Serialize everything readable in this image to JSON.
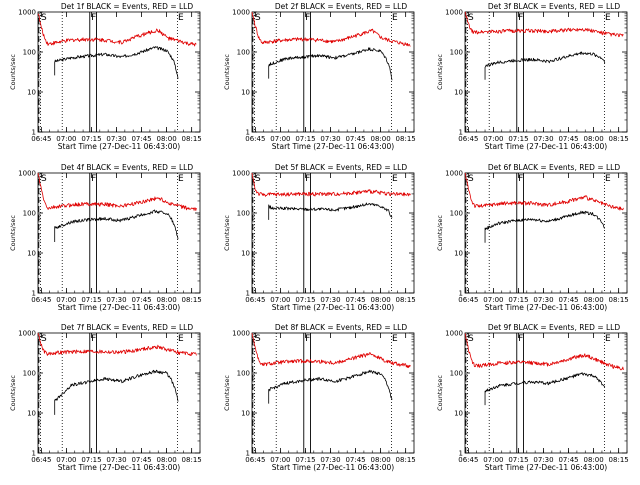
{
  "figure": {
    "colors": {
      "events": "#000000",
      "lld": "#e00000",
      "axis": "#000000",
      "markers": "#000000"
    }
  },
  "chart_data": [
    {
      "type": "line",
      "title": "Det 1f BLACK = Events, RED = LLD",
      "xlabel": "Start Time (27-Dec-11 06:43:00)",
      "ylabel": "Counts/sec",
      "yscale": "log",
      "ylim": [
        1,
        1000
      ],
      "xlim_min": [
        0,
        37
      ],
      "x_ticks_min": [
        2,
        17,
        32,
        47,
        62,
        77,
        92
      ],
      "x_tick_labels": [
        "06:45",
        "07:00",
        "07:15",
        "07:30",
        "07:45",
        "08:00",
        "08:15"
      ],
      "y_ticks": [
        1,
        10,
        100,
        1000
      ],
      "y_tick_labels": [
        "1",
        "10",
        "100",
        "1000"
      ],
      "marker_labels": [
        "S",
        "F",
        "E"
      ],
      "markers_x_min": [
        1.5,
        31.5,
        83.5
      ],
      "dotted_lines_x_min": [
        1.5,
        14.5,
        83.5
      ],
      "box_lines_x_min": [
        31.0,
        35.0
      ],
      "series": [
        {
          "name": "Events",
          "color": "#000000",
          "x_min": [
            10,
            20,
            30,
            40,
            50,
            60,
            70,
            77,
            80,
            82,
            84
          ],
          "values": [
            58,
            72,
            80,
            88,
            75,
            95,
            130,
            110,
            75,
            50,
            20
          ]
        },
        {
          "name": "LLD",
          "color": "#e00000",
          "x_min": [
            0,
            2,
            4,
            6,
            10,
            20,
            30,
            40,
            50,
            60,
            66,
            72,
            78,
            84,
            90,
            95
          ],
          "values": [
            1000,
            400,
            220,
            160,
            170,
            200,
            210,
            200,
            175,
            250,
            300,
            350,
            220,
            190,
            160,
            150
          ]
        }
      ]
    },
    {
      "type": "line",
      "title": "Det 2f BLACK = Events, RED = LLD",
      "xlabel": "Start Time (27-Dec-11 06:43:00)",
      "ylabel": "Counts/sec",
      "yscale": "log",
      "ylim": [
        1,
        1000
      ],
      "x_tick_labels": [
        "06:45",
        "07:00",
        "07:15",
        "07:30",
        "07:45",
        "08:00",
        "08:15"
      ],
      "y_tick_labels": [
        "1",
        "10",
        "100",
        "1000"
      ],
      "marker_labels": [
        "S",
        "F",
        "E"
      ],
      "series": [
        {
          "name": "Events",
          "color": "#000000",
          "x_min": [
            10,
            20,
            30,
            40,
            50,
            60,
            70,
            77,
            80,
            82,
            84
          ],
          "values": [
            48,
            68,
            75,
            82,
            72,
            88,
            120,
            105,
            72,
            48,
            20
          ]
        },
        {
          "name": "LLD",
          "color": "#e00000",
          "x_min": [
            0,
            2,
            4,
            6,
            10,
            20,
            30,
            40,
            50,
            60,
            66,
            72,
            78,
            84,
            90,
            95
          ],
          "values": [
            1000,
            450,
            230,
            170,
            180,
            200,
            210,
            200,
            180,
            240,
            290,
            340,
            220,
            185,
            165,
            150
          ]
        }
      ]
    },
    {
      "type": "line",
      "title": "Det 3f BLACK = Events, RED = LLD",
      "xlabel": "Start Time (27-Dec-11 06:43:00)",
      "ylabel": "Counts/sec",
      "yscale": "log",
      "ylim": [
        1,
        1000
      ],
      "x_tick_labels": [
        "06:45",
        "07:00",
        "07:15",
        "07:30",
        "07:45",
        "08:00",
        "08:15"
      ],
      "y_tick_labels": [
        "1",
        "10",
        "100",
        "1000"
      ],
      "marker_labels": [
        "S",
        "F",
        "E"
      ],
      "series": [
        {
          "name": "Events",
          "color": "#000000",
          "x_min": [
            12,
            20,
            30,
            40,
            50,
            60,
            70,
            77,
            82,
            84
          ],
          "values": [
            45,
            55,
            62,
            65,
            58,
            75,
            95,
            88,
            70,
            55
          ]
        },
        {
          "name": "LLD",
          "color": "#e00000",
          "x_min": [
            0,
            2,
            4,
            6,
            10,
            20,
            30,
            40,
            50,
            60,
            70,
            78,
            84,
            90,
            95
          ],
          "values": [
            1000,
            500,
            330,
            310,
            320,
            330,
            340,
            340,
            330,
            350,
            380,
            330,
            290,
            270,
            260
          ]
        }
      ]
    },
    {
      "type": "line",
      "title": "Det 4f BLACK = Events, RED = LLD",
      "xlabel": "Start Time (27-Dec-11 06:43:00)",
      "ylabel": "Counts/sec",
      "yscale": "log",
      "ylim": [
        1,
        1000
      ],
      "x_tick_labels": [
        "06:45",
        "07:00",
        "07:15",
        "07:30",
        "07:45",
        "08:00",
        "08:15"
      ],
      "y_tick_labels": [
        "1",
        "10",
        "100",
        "1000"
      ],
      "marker_labels": [
        "S",
        "F",
        "E"
      ],
      "series": [
        {
          "name": "Events",
          "color": "#000000",
          "x_min": [
            10,
            20,
            30,
            40,
            50,
            60,
            70,
            77,
            80,
            82,
            84
          ],
          "values": [
            42,
            60,
            68,
            72,
            65,
            85,
            110,
            100,
            70,
            45,
            22
          ]
        },
        {
          "name": "LLD",
          "color": "#e00000",
          "x_min": [
            0,
            2,
            4,
            6,
            10,
            20,
            30,
            40,
            50,
            60,
            66,
            72,
            78,
            84,
            90,
            95
          ],
          "values": [
            1000,
            380,
            180,
            130,
            140,
            160,
            170,
            165,
            150,
            180,
            210,
            240,
            180,
            150,
            130,
            120
          ]
        }
      ]
    },
    {
      "type": "line",
      "title": "Det 5f BLACK = Events, RED = LLD",
      "xlabel": "Start Time (27-Dec-11 06:43:00)",
      "ylabel": "Counts/sec",
      "yscale": "log",
      "ylim": [
        1,
        1000
      ],
      "x_tick_labels": [
        "06:45",
        "07:00",
        "07:15",
        "07:30",
        "07:45",
        "08:00",
        "08:15"
      ],
      "y_tick_labels": [
        "1",
        "10",
        "100",
        "1000"
      ],
      "marker_labels": [
        "S",
        "F",
        "E"
      ],
      "series": [
        {
          "name": "Events",
          "color": "#000000",
          "x_min": [
            10,
            12,
            20,
            30,
            40,
            50,
            60,
            70,
            77,
            82,
            84
          ],
          "values": [
            150,
            130,
            130,
            125,
            125,
            120,
            140,
            170,
            150,
            110,
            70
          ]
        },
        {
          "name": "LLD",
          "color": "#e00000",
          "x_min": [
            0,
            2,
            4,
            6,
            10,
            20,
            30,
            40,
            50,
            60,
            70,
            78,
            84,
            90,
            95
          ],
          "values": [
            1000,
            380,
            300,
            290,
            290,
            295,
            300,
            300,
            300,
            320,
            350,
            320,
            300,
            290,
            285
          ]
        }
      ]
    },
    {
      "type": "line",
      "title": "Det 6f BLACK = Events, RED = LLD",
      "xlabel": "Start Time (27-Dec-11 06:43:00)",
      "ylabel": "Counts/sec",
      "yscale": "log",
      "ylim": [
        1,
        1000
      ],
      "x_tick_labels": [
        "06:45",
        "07:00",
        "07:15",
        "07:30",
        "07:45",
        "08:00",
        "08:15"
      ],
      "y_tick_labels": [
        "1",
        "10",
        "100",
        "1000"
      ],
      "marker_labels": [
        "S",
        "F",
        "E"
      ],
      "series": [
        {
          "name": "Events",
          "color": "#000000",
          "x_min": [
            12,
            20,
            30,
            40,
            50,
            60,
            70,
            77,
            82,
            84
          ],
          "values": [
            40,
            55,
            65,
            70,
            62,
            80,
            105,
            95,
            60,
            40
          ]
        },
        {
          "name": "LLD",
          "color": "#e00000",
          "x_min": [
            0,
            2,
            4,
            6,
            10,
            20,
            30,
            40,
            50,
            60,
            66,
            72,
            78,
            84,
            90,
            95
          ],
          "values": [
            1000,
            420,
            200,
            150,
            150,
            170,
            180,
            175,
            160,
            190,
            220,
            250,
            200,
            160,
            135,
            125
          ]
        }
      ]
    },
    {
      "type": "line",
      "title": "Det 7f BLACK = Events, RED = LLD",
      "xlabel": "Start Time (27-Dec-11 06:43:00)",
      "ylabel": "Counts/sec",
      "yscale": "log",
      "ylim": [
        1,
        1000
      ],
      "x_tick_labels": [
        "06:45",
        "07:00",
        "07:15",
        "07:30",
        "07:45",
        "08:00",
        "08:15"
      ],
      "y_tick_labels": [
        "1",
        "10",
        "100",
        "1000"
      ],
      "marker_labels": [
        "S",
        "F",
        "E"
      ],
      "series": [
        {
          "name": "Events",
          "color": "#000000",
          "x_min": [
            10,
            20,
            30,
            40,
            50,
            60,
            70,
            77,
            80,
            82,
            84
          ],
          "values": [
            20,
            50,
            60,
            72,
            62,
            85,
            110,
            100,
            65,
            40,
            20
          ]
        },
        {
          "name": "LLD",
          "color": "#e00000",
          "x_min": [
            0,
            2,
            4,
            6,
            10,
            20,
            30,
            40,
            50,
            60,
            66,
            72,
            78,
            84,
            90,
            95
          ],
          "values": [
            1000,
            500,
            330,
            300,
            320,
            340,
            350,
            340,
            330,
            380,
            420,
            450,
            380,
            330,
            300,
            290
          ]
        }
      ]
    },
    {
      "type": "line",
      "title": "Det 8f BLACK = Events, RED = LLD",
      "xlabel": "Start Time (27-Dec-11 06:43:00)",
      "ylabel": "Counts/sec",
      "yscale": "log",
      "ylim": [
        1,
        1000
      ],
      "x_tick_labels": [
        "06:45",
        "07:00",
        "07:15",
        "07:30",
        "07:45",
        "08:00",
        "08:15"
      ],
      "y_tick_labels": [
        "1",
        "10",
        "100",
        "1000"
      ],
      "marker_labels": [
        "S",
        "F",
        "E"
      ],
      "series": [
        {
          "name": "Events",
          "color": "#000000",
          "x_min": [
            10,
            20,
            30,
            40,
            50,
            60,
            70,
            77,
            80,
            82,
            84
          ],
          "values": [
            38,
            55,
            65,
            72,
            62,
            80,
            110,
            95,
            65,
            40,
            20
          ]
        },
        {
          "name": "LLD",
          "color": "#e00000",
          "x_min": [
            0,
            2,
            4,
            6,
            10,
            20,
            30,
            40,
            50,
            60,
            66,
            72,
            78,
            84,
            90,
            95
          ],
          "values": [
            1000,
            420,
            210,
            160,
            170,
            190,
            200,
            195,
            180,
            230,
            270,
            300,
            220,
            180,
            160,
            150
          ]
        }
      ]
    },
    {
      "type": "line",
      "title": "Det 9f BLACK = Events, RED = LLD",
      "xlabel": "Start Time (27-Dec-11 06:43:00)",
      "ylabel": "Counts/sec",
      "yscale": "log",
      "ylim": [
        1,
        1000
      ],
      "x_tick_labels": [
        "06:45",
        "07:00",
        "07:15",
        "07:30",
        "07:45",
        "08:00",
        "08:15"
      ],
      "y_tick_labels": [
        "1",
        "10",
        "100",
        "1000"
      ],
      "marker_labels": [
        "S",
        "F",
        "E"
      ],
      "series": [
        {
          "name": "Events",
          "color": "#000000",
          "x_min": [
            12,
            20,
            30,
            40,
            50,
            60,
            70,
            77,
            82,
            84
          ],
          "values": [
            35,
            48,
            55,
            60,
            55,
            72,
            95,
            85,
            55,
            40
          ]
        },
        {
          "name": "LLD",
          "color": "#e00000",
          "x_min": [
            0,
            2,
            4,
            6,
            10,
            20,
            30,
            40,
            50,
            60,
            66,
            72,
            78,
            84,
            90,
            95
          ],
          "values": [
            1000,
            400,
            200,
            150,
            155,
            175,
            185,
            180,
            165,
            210,
            250,
            280,
            220,
            170,
            140,
            130
          ]
        }
      ]
    }
  ]
}
